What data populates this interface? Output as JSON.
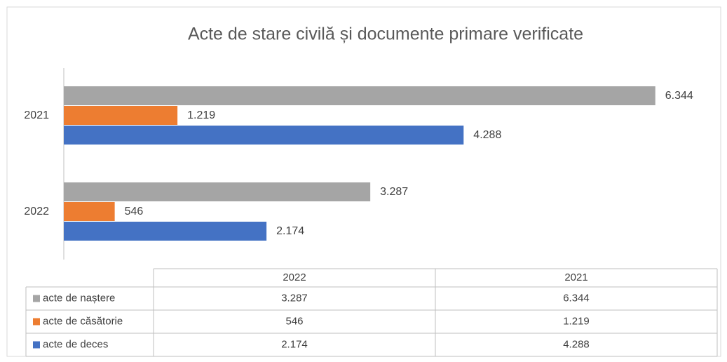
{
  "chart_data": {
    "type": "bar",
    "orientation": "horizontal",
    "title": "Acte de stare civilă și documente primare verificate",
    "categories": [
      "2022",
      "2021"
    ],
    "series": [
      {
        "name": "acte de naștere",
        "color": "#a5a5a5",
        "values": [
          3287,
          6344
        ],
        "value_labels": [
          "3.287",
          "6.344"
        ]
      },
      {
        "name": "acte de căsătorie",
        "color": "#ed7d31",
        "values": [
          546,
          1219
        ],
        "value_labels": [
          "546",
          "1.219"
        ]
      },
      {
        "name": "acte de deces",
        "color": "#4472c4",
        "values": [
          2174,
          4288
        ],
        "value_labels": [
          "2.174",
          "4.288"
        ]
      }
    ],
    "xlim": [
      0,
      7000
    ],
    "grid": false,
    "data_table": true
  }
}
